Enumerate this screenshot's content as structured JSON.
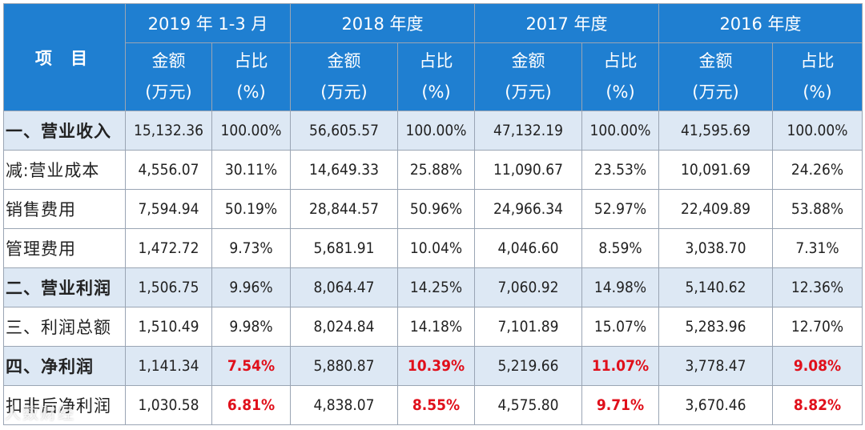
{
  "header": {
    "item_label": "项 目",
    "periods": [
      "2019 年 1-3 月",
      "2018 年度",
      "2017 年度",
      "2016  年度"
    ],
    "amount_label_line1": "金额",
    "amount_label_line2": "(万元)",
    "ratio_label_line1": "占比",
    "ratio_label_line2": "(%)"
  },
  "rows": [
    {
      "label": "一、营业收入",
      "highlight": true,
      "red_ratio": false,
      "cells": [
        "15,132.36",
        "100.00%",
        "56,605.57",
        "100.00%",
        "47,132.19",
        "100.00%",
        "41,595.69",
        "100.00%"
      ]
    },
    {
      "label": "减:营业成本",
      "highlight": false,
      "red_ratio": false,
      "cells": [
        "4,556.07",
        "30.11%",
        "14,649.33",
        "25.88%",
        "11,090.67",
        "23.53%",
        "10,091.69",
        "24.26%"
      ]
    },
    {
      "label": "销售费用",
      "highlight": false,
      "red_ratio": false,
      "cells": [
        "7,594.94",
        "50.19%",
        "28,844.57",
        "50.96%",
        "24,966.34",
        "52.97%",
        "22,409.89",
        "53.88%"
      ]
    },
    {
      "label": "管理费用",
      "highlight": false,
      "red_ratio": false,
      "cells": [
        "1,472.72",
        "9.73%",
        "5,681.91",
        "10.04%",
        "4,046.60",
        "8.59%",
        "3,038.70",
        "7.31%"
      ]
    },
    {
      "label": "二、营业利润",
      "highlight": true,
      "red_ratio": false,
      "cells": [
        "1,506.75",
        "9.96%",
        "8,064.47",
        "14.25%",
        "7,060.92",
        "14.98%",
        "5,140.62",
        "12.36%"
      ]
    },
    {
      "label": "三、利润总额",
      "highlight": false,
      "red_ratio": false,
      "cells": [
        "1,510.49",
        "9.98%",
        "8,024.84",
        "14.18%",
        "7,101.89",
        "15.07%",
        "5,283.96",
        "12.70%"
      ]
    },
    {
      "label": "四、净利润",
      "highlight": true,
      "red_ratio": true,
      "cells": [
        "1,141.34",
        "7.54%",
        "5,880.87",
        "10.39%",
        "5,219.66",
        "11.07%",
        "3,778.47",
        "9.08%"
      ]
    },
    {
      "label": "扣非后净利润",
      "highlight": false,
      "red_ratio": true,
      "cells": [
        "1,030.58",
        "6.81%",
        "4,838.07",
        "8.55%",
        "4,575.80",
        "9.71%",
        "3,670.46",
        "8.82%"
      ]
    }
  ],
  "colors": {
    "header_bg": "#1f7fd1",
    "highlight_bg": "#dde8f4",
    "red_text": "#e0101b"
  },
  "watermark": "人数财经"
}
